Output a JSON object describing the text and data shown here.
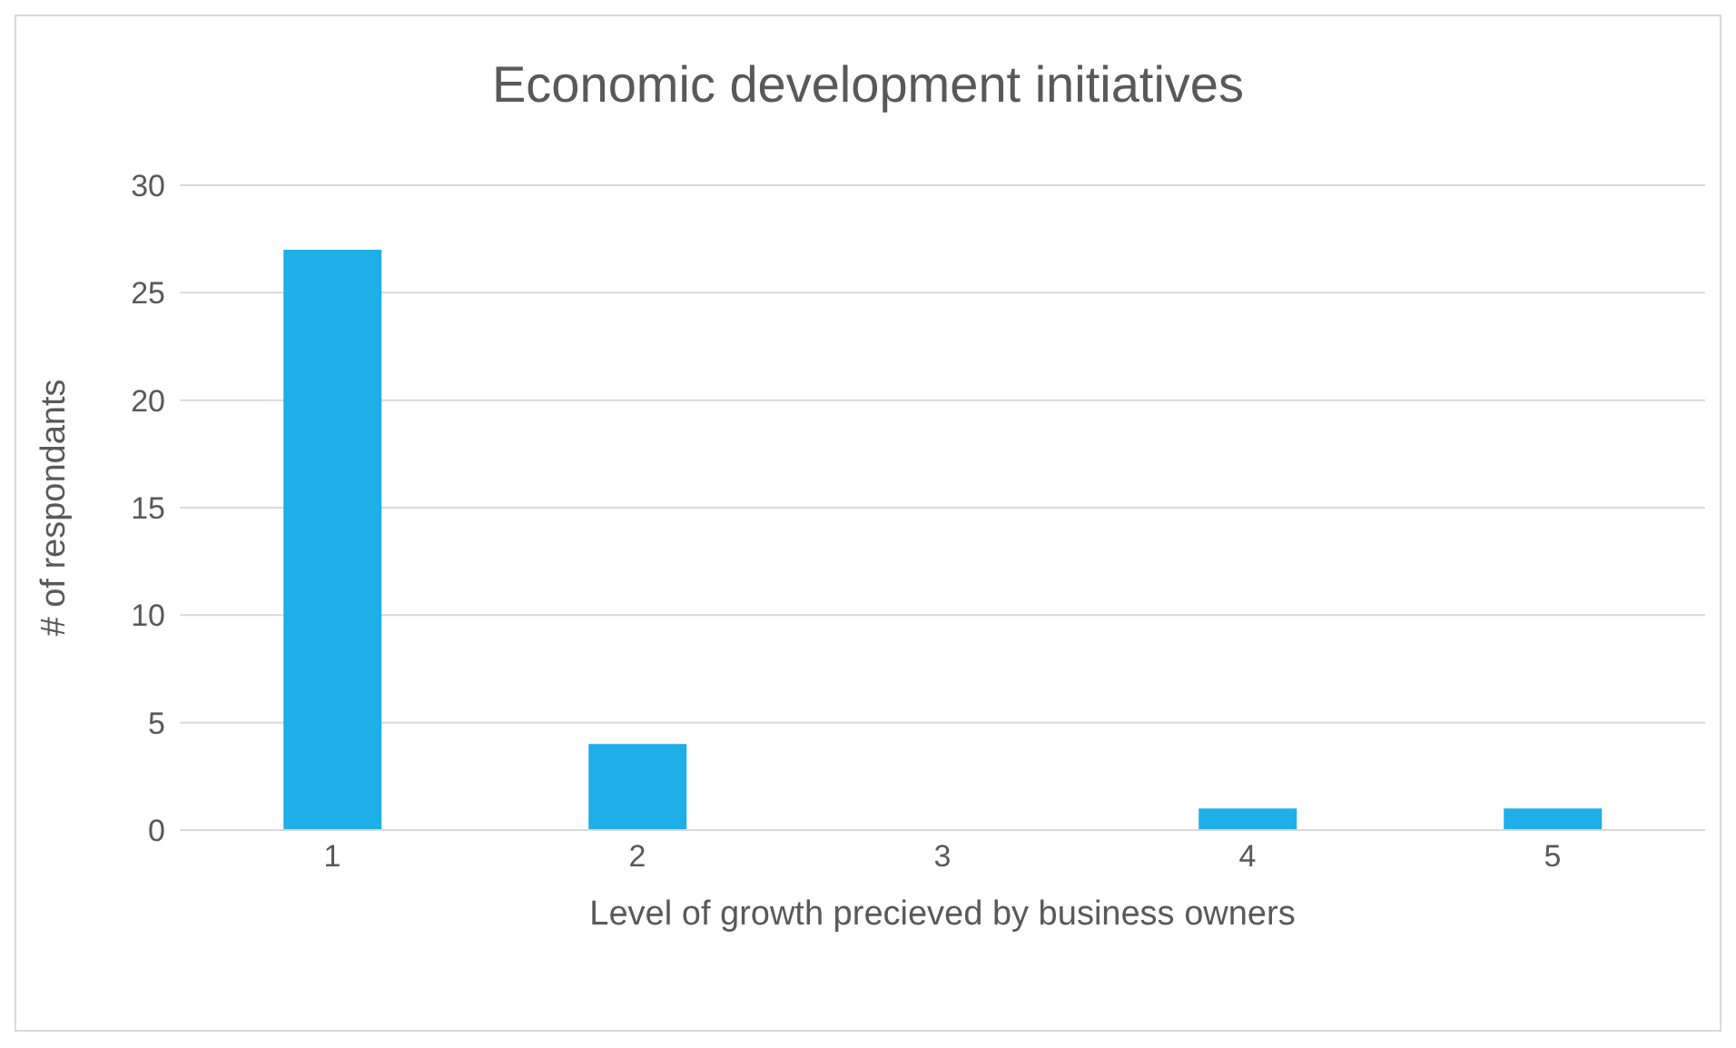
{
  "chart_data": {
    "type": "bar",
    "title": "Economic development initiatives",
    "xlabel": "Level of growth precieved by business owners",
    "ylabel": "# of respondants",
    "categories": [
      "1",
      "2",
      "3",
      "4",
      "5"
    ],
    "values": [
      27,
      4,
      0,
      1,
      1
    ],
    "color": "#1eaee8",
    "ylim": [
      0,
      30
    ],
    "yticks": [
      0,
      5,
      10,
      15,
      20,
      25,
      30
    ],
    "grid": "y",
    "legend": false
  }
}
